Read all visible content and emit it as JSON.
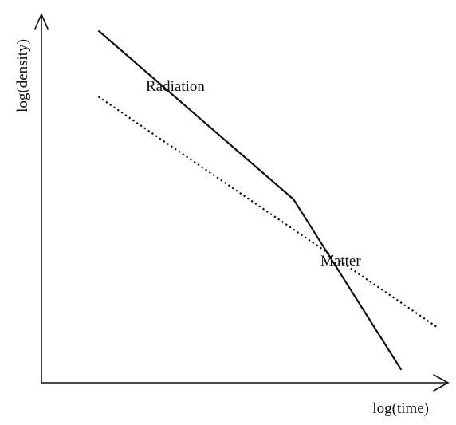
{
  "chart_data": {
    "type": "line",
    "title": "",
    "xlabel": "log(time)",
    "ylabel": "log(density)",
    "ticks": "none",
    "grid": false,
    "legend": "none",
    "xlim": [
      0,
      10
    ],
    "ylim": [
      0,
      10
    ],
    "series": [
      {
        "name": "Radiation",
        "style": "solid",
        "color": "#111111",
        "x": [
          1.4,
          6.2,
          8.85
        ],
        "y": [
          9.6,
          5.0,
          0.35
        ]
      },
      {
        "name": "Matter",
        "style": "dotted",
        "color": "#111111",
        "x": [
          1.4,
          9.75
        ],
        "y": [
          7.8,
          1.5
        ]
      }
    ]
  }
}
